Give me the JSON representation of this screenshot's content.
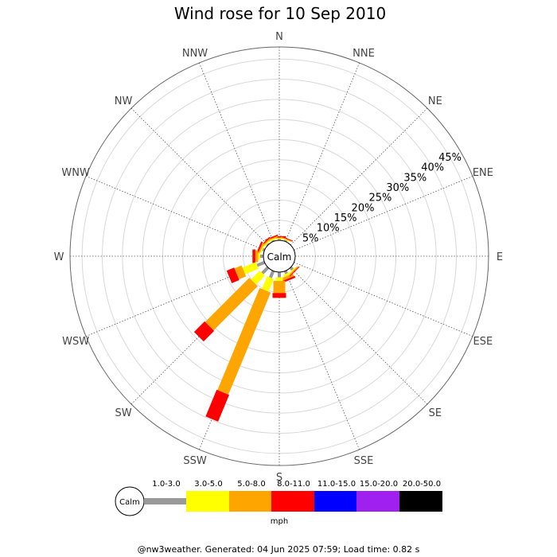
{
  "chart_data": {
    "type": "wind-rose",
    "title": "Wind rose for 10 Sep 2010",
    "directions": [
      "N",
      "NNE",
      "NE",
      "ENE",
      "E",
      "ESE",
      "SE",
      "SSE",
      "S",
      "SSW",
      "SW",
      "WSW",
      "W",
      "WNW",
      "NW",
      "NNW"
    ],
    "ring_labels": [
      "5%",
      "10%",
      "15%",
      "20%",
      "25%",
      "30%",
      "35%",
      "40%",
      "45%"
    ],
    "ring_values": [
      5,
      10,
      15,
      20,
      25,
      30,
      35,
      40,
      45
    ],
    "rmax_percent": 48,
    "grid": true,
    "calm_label": "Calm",
    "speed_bins": [
      "1.0-3.0",
      "3.0-5.0",
      "5.0-8.0",
      "8.0-11.0",
      "11.0-15.0",
      "15.0-20.0",
      "20.0-50.0"
    ],
    "colors": [
      "#999999",
      "#ffff00",
      "#ffa500",
      "#ff0000",
      "#0000ff",
      "#a020f0",
      "#000000"
    ],
    "unit": "mph",
    "petals": [
      {
        "direction": "N",
        "cumulative_percent": [
          0.3,
          0.5,
          0.7,
          1.0,
          1.0,
          1.0,
          1.0
        ]
      },
      {
        "direction": "NNE",
        "cumulative_percent": [
          0.3,
          0.5,
          0.7,
          0.9,
          0.9,
          0.9,
          0.9
        ]
      },
      {
        "direction": "NNW",
        "cumulative_percent": [
          0.3,
          0.6,
          0.9,
          1.2,
          1.2,
          1.2,
          1.2
        ]
      },
      {
        "direction": "NW",
        "cumulative_percent": [
          0.3,
          0.6,
          0.9,
          1.2,
          1.2,
          1.2,
          1.2
        ]
      },
      {
        "direction": "WNW",
        "cumulative_percent": [
          0.5,
          0.8,
          1.2,
          1.6,
          1.6,
          1.6,
          1.6
        ]
      },
      {
        "direction": "W",
        "cumulative_percent": [
          0.8,
          1.3,
          2.0,
          2.7,
          2.7,
          2.7,
          2.7
        ]
      },
      {
        "direction": "SSE",
        "cumulative_percent": [
          0.7,
          1.3,
          2.0,
          2.5,
          2.5,
          2.5,
          2.5
        ]
      },
      {
        "direction": "SE",
        "cumulative_percent": [
          0.7,
          1.0,
          1.3,
          1.5,
          1.5,
          1.5,
          1.5
        ]
      },
      {
        "direction": "S",
        "cumulative_percent": [
          1.3,
          2.2,
          5.2,
          6.4,
          6.4,
          6.4,
          6.4
        ]
      },
      {
        "direction": "WSW",
        "cumulative_percent": [
          2.0,
          5.6,
          7.5,
          9.5,
          9.5,
          9.5,
          9.5
        ]
      },
      {
        "direction": "SW",
        "cumulative_percent": [
          2.0,
          5.1,
          20.6,
          24.3,
          24.3,
          24.3,
          24.3
        ]
      },
      {
        "direction": "SSW",
        "cumulative_percent": [
          1.8,
          5.2,
          32.6,
          39.8,
          39.8,
          39.8,
          39.8
        ]
      }
    ]
  },
  "footer": "@nw3weather. Generated: 04 Jun 2025 07:59; Load time: 0.82 s"
}
